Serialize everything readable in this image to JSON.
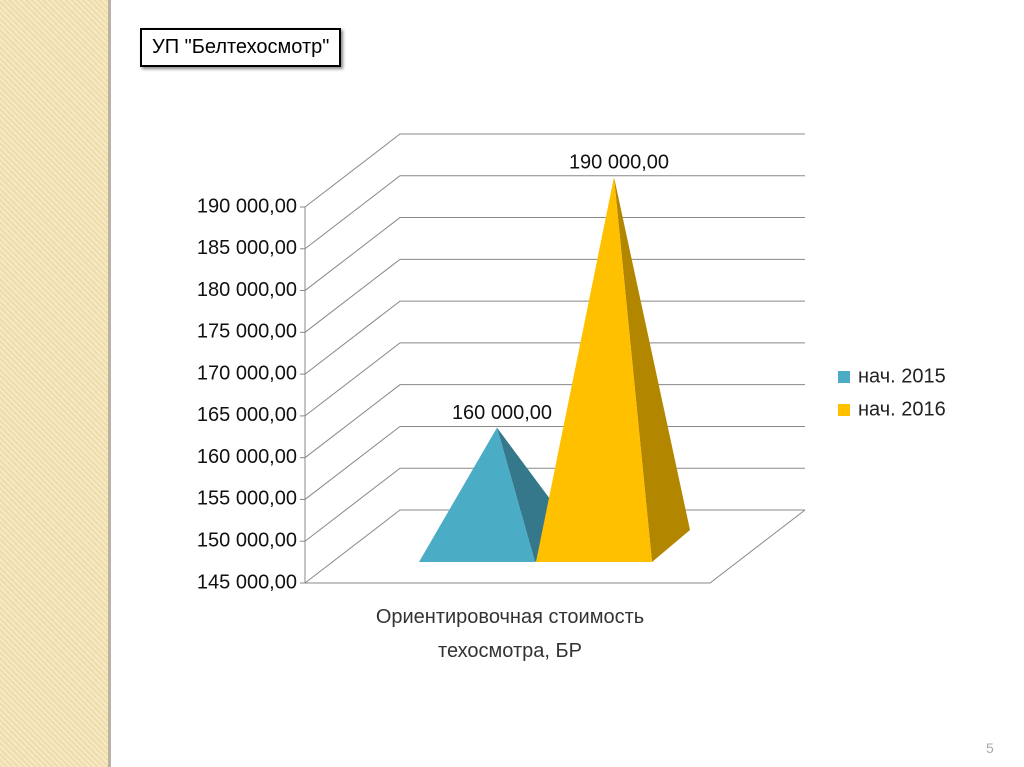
{
  "header": {
    "title": "УП \"Белтехосмотр\""
  },
  "chart_data": {
    "type": "pyramid3d",
    "categories": [
      "Ориентировочная стоимость техосмотра, БР"
    ],
    "series": [
      {
        "name": "нач. 2015",
        "color": "#4bacc6",
        "values": [
          160000
        ],
        "value_labels": [
          "160 000,00"
        ]
      },
      {
        "name": "нач. 2016",
        "color": "#ffc000",
        "values": [
          190000
        ],
        "value_labels": [
          "190 000,00"
        ]
      }
    ],
    "ylim": [
      145000,
      190000
    ],
    "yticks": [
      {
        "value": 145000,
        "label": "145 000,00"
      },
      {
        "value": 150000,
        "label": "150 000,00"
      },
      {
        "value": 155000,
        "label": "155 000,00"
      },
      {
        "value": 160000,
        "label": "160 000,00"
      },
      {
        "value": 165000,
        "label": "165 000,00"
      },
      {
        "value": 170000,
        "label": "170 000,00"
      },
      {
        "value": 175000,
        "label": "175 000,00"
      },
      {
        "value": 180000,
        "label": "180 000,00"
      },
      {
        "value": 185000,
        "label": "185 000,00"
      },
      {
        "value": 190000,
        "label": "190 000,00"
      }
    ],
    "grid": true,
    "legend": "right"
  },
  "footer": {
    "page_number": "5"
  }
}
